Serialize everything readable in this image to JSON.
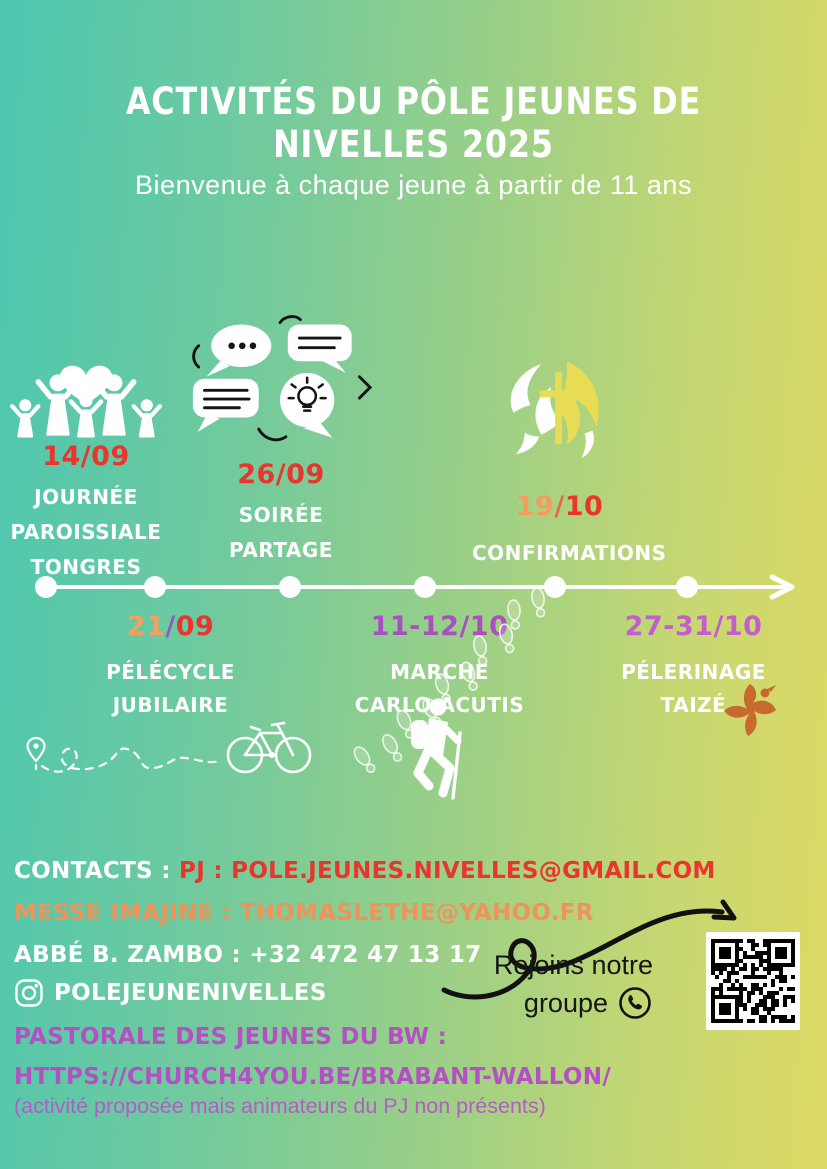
{
  "poster": {
    "title": "ACTIVITÉS DU PÔLE JEUNES DE NIVELLES 2025",
    "subtitle": "Bienvenue à chaque jeune à partir de 11 ans"
  },
  "colors": {
    "background_left": "#4cc7b0",
    "background_right": "#ded963",
    "red": "#e8352e",
    "orange": "#f59b5b",
    "purple_slash": "#8e5bc0",
    "purple_date": "#a94fc0",
    "magenta_date": "#c45ecd",
    "contact_orange": "#f0935b",
    "contact_purple": "#b44fc6",
    "taize_dove_orange": "#c8692f",
    "confirmation_yellow": "#e8dc55",
    "white": "#ffffff",
    "black": "#161616"
  },
  "timeline": {
    "events": [
      {
        "id": "journee-paroissiale",
        "position": "above",
        "icon": "family-heart-icon",
        "date_parts": [
          {
            "text": "14/09",
            "color": "#e8352e"
          }
        ],
        "label_lines": [
          "JOURNÉE",
          "PAROISSIALE",
          "TONGRES"
        ]
      },
      {
        "id": "soiree-partage",
        "position": "above",
        "icon": "speech-bubbles-icon",
        "date_parts": [
          {
            "text": "26/09",
            "color": "#e8352e"
          }
        ],
        "label_lines": [
          "SOIRÉE",
          "PARTAGE"
        ]
      },
      {
        "id": "confirmations",
        "position": "above",
        "icon": "confirmation-dove-cross-icon",
        "date_parts": [
          {
            "text": "19",
            "color": "#f59b5b"
          },
          {
            "text": "/",
            "color": "#e8694a"
          },
          {
            "text": "10",
            "color": "#e8352e"
          }
        ],
        "label_lines": [
          "CONFIRMATIONS"
        ]
      },
      {
        "id": "pelecycle-jubilaire",
        "position": "below",
        "icon": "bicycle-route-icon",
        "date_parts": [
          {
            "text": "21",
            "color": "#f5a05e"
          },
          {
            "text": "/",
            "color": "#8e5bc0"
          },
          {
            "text": "09",
            "color": "#e8352e"
          }
        ],
        "label_lines": [
          "PÉLÉCYCLE",
          "JUBILAIRE"
        ]
      },
      {
        "id": "marche-carlo-acutis",
        "position": "below",
        "icon": "hiker-icon",
        "date_parts": [
          {
            "text": "11-12/10",
            "color": "#a94fc0"
          }
        ],
        "label_lines": [
          "MARCHE",
          "CARLO ACUTIS"
        ]
      },
      {
        "id": "pelerinage-taize",
        "position": "below",
        "icon": "taize-dove-icon",
        "date_parts": [
          {
            "text": "27-31/10",
            "color": "#c45ecd"
          }
        ],
        "label_lines": [
          "PÉLERINAGE",
          "TAIZÉ"
        ]
      }
    ]
  },
  "contacts": {
    "line1_prefix": "CONTACTS : ",
    "line1_value": "PJ : POLE.JEUNES.NIVELLES@GMAIL.COM",
    "messe_imajine": "MESSE IMAJINE : THOMASLETHE@YAHOO.FR",
    "abbe": "ABBÉ B. ZAMBO : +32 472 47 13 17",
    "instagram_handle": "POLEJEUNENIVELLES",
    "pastorale_label": "PASTORALE DES JEUNES DU BW :",
    "pastorale_url": "HTTPS://CHURCH4YOU.BE/BRABANT-WALLON/",
    "note": "(activité proposée mais animateurs du PJ non présents)"
  },
  "whatsapp": {
    "line1": "Rejoins notre",
    "line2": "groupe"
  }
}
